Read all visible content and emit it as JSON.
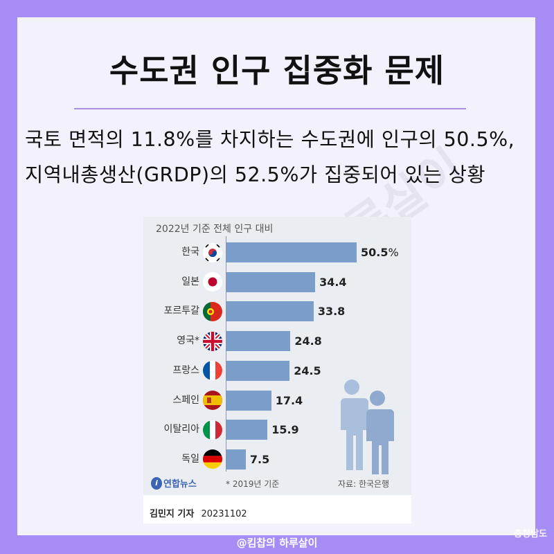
{
  "headline": "수도권 인구 집중화 문제",
  "lead_text": "국토 면적의 11.8%를 차지하는 수도권에 인구의 50.5%, 지역내총생산(GRDP)의 52.5%가 집중되어 있는 상황",
  "watermark": "하루살이",
  "footer_tag": "@킴찹의 하루살이",
  "region_mark": "충청남도",
  "colors": {
    "background": "#a68cf5",
    "bar": "#7b9dc9",
    "card": "#f3f1fb"
  },
  "chart_data": {
    "type": "bar",
    "orientation": "horizontal",
    "subtitle": "2022년 기준 전체 인구 대비",
    "categories": [
      "한국",
      "일본",
      "포르투갈",
      "영국*",
      "프랑스",
      "스페인",
      "이탈리아",
      "독일"
    ],
    "flag_icons": [
      "korea-flag-icon",
      "japan-flag-icon",
      "portugal-flag-icon",
      "uk-flag-icon",
      "france-flag-icon",
      "spain-flag-icon",
      "italy-flag-icon",
      "germany-flag-icon"
    ],
    "values": [
      50.5,
      34.4,
      33.8,
      24.8,
      24.5,
      17.4,
      15.9,
      7.5
    ],
    "value_labels": [
      "50.5",
      "34.4",
      "33.8",
      "24.8",
      "24.5",
      "17.4",
      "15.9",
      "7.5"
    ],
    "first_label_unit": "%",
    "xlim": [
      0,
      60
    ],
    "grid": false,
    "source_logo": "연합뉴스",
    "footnote": "* 2019년 기준",
    "source": "자료: 한국은행",
    "reporter": "김민지 기자",
    "date": "20231102"
  }
}
